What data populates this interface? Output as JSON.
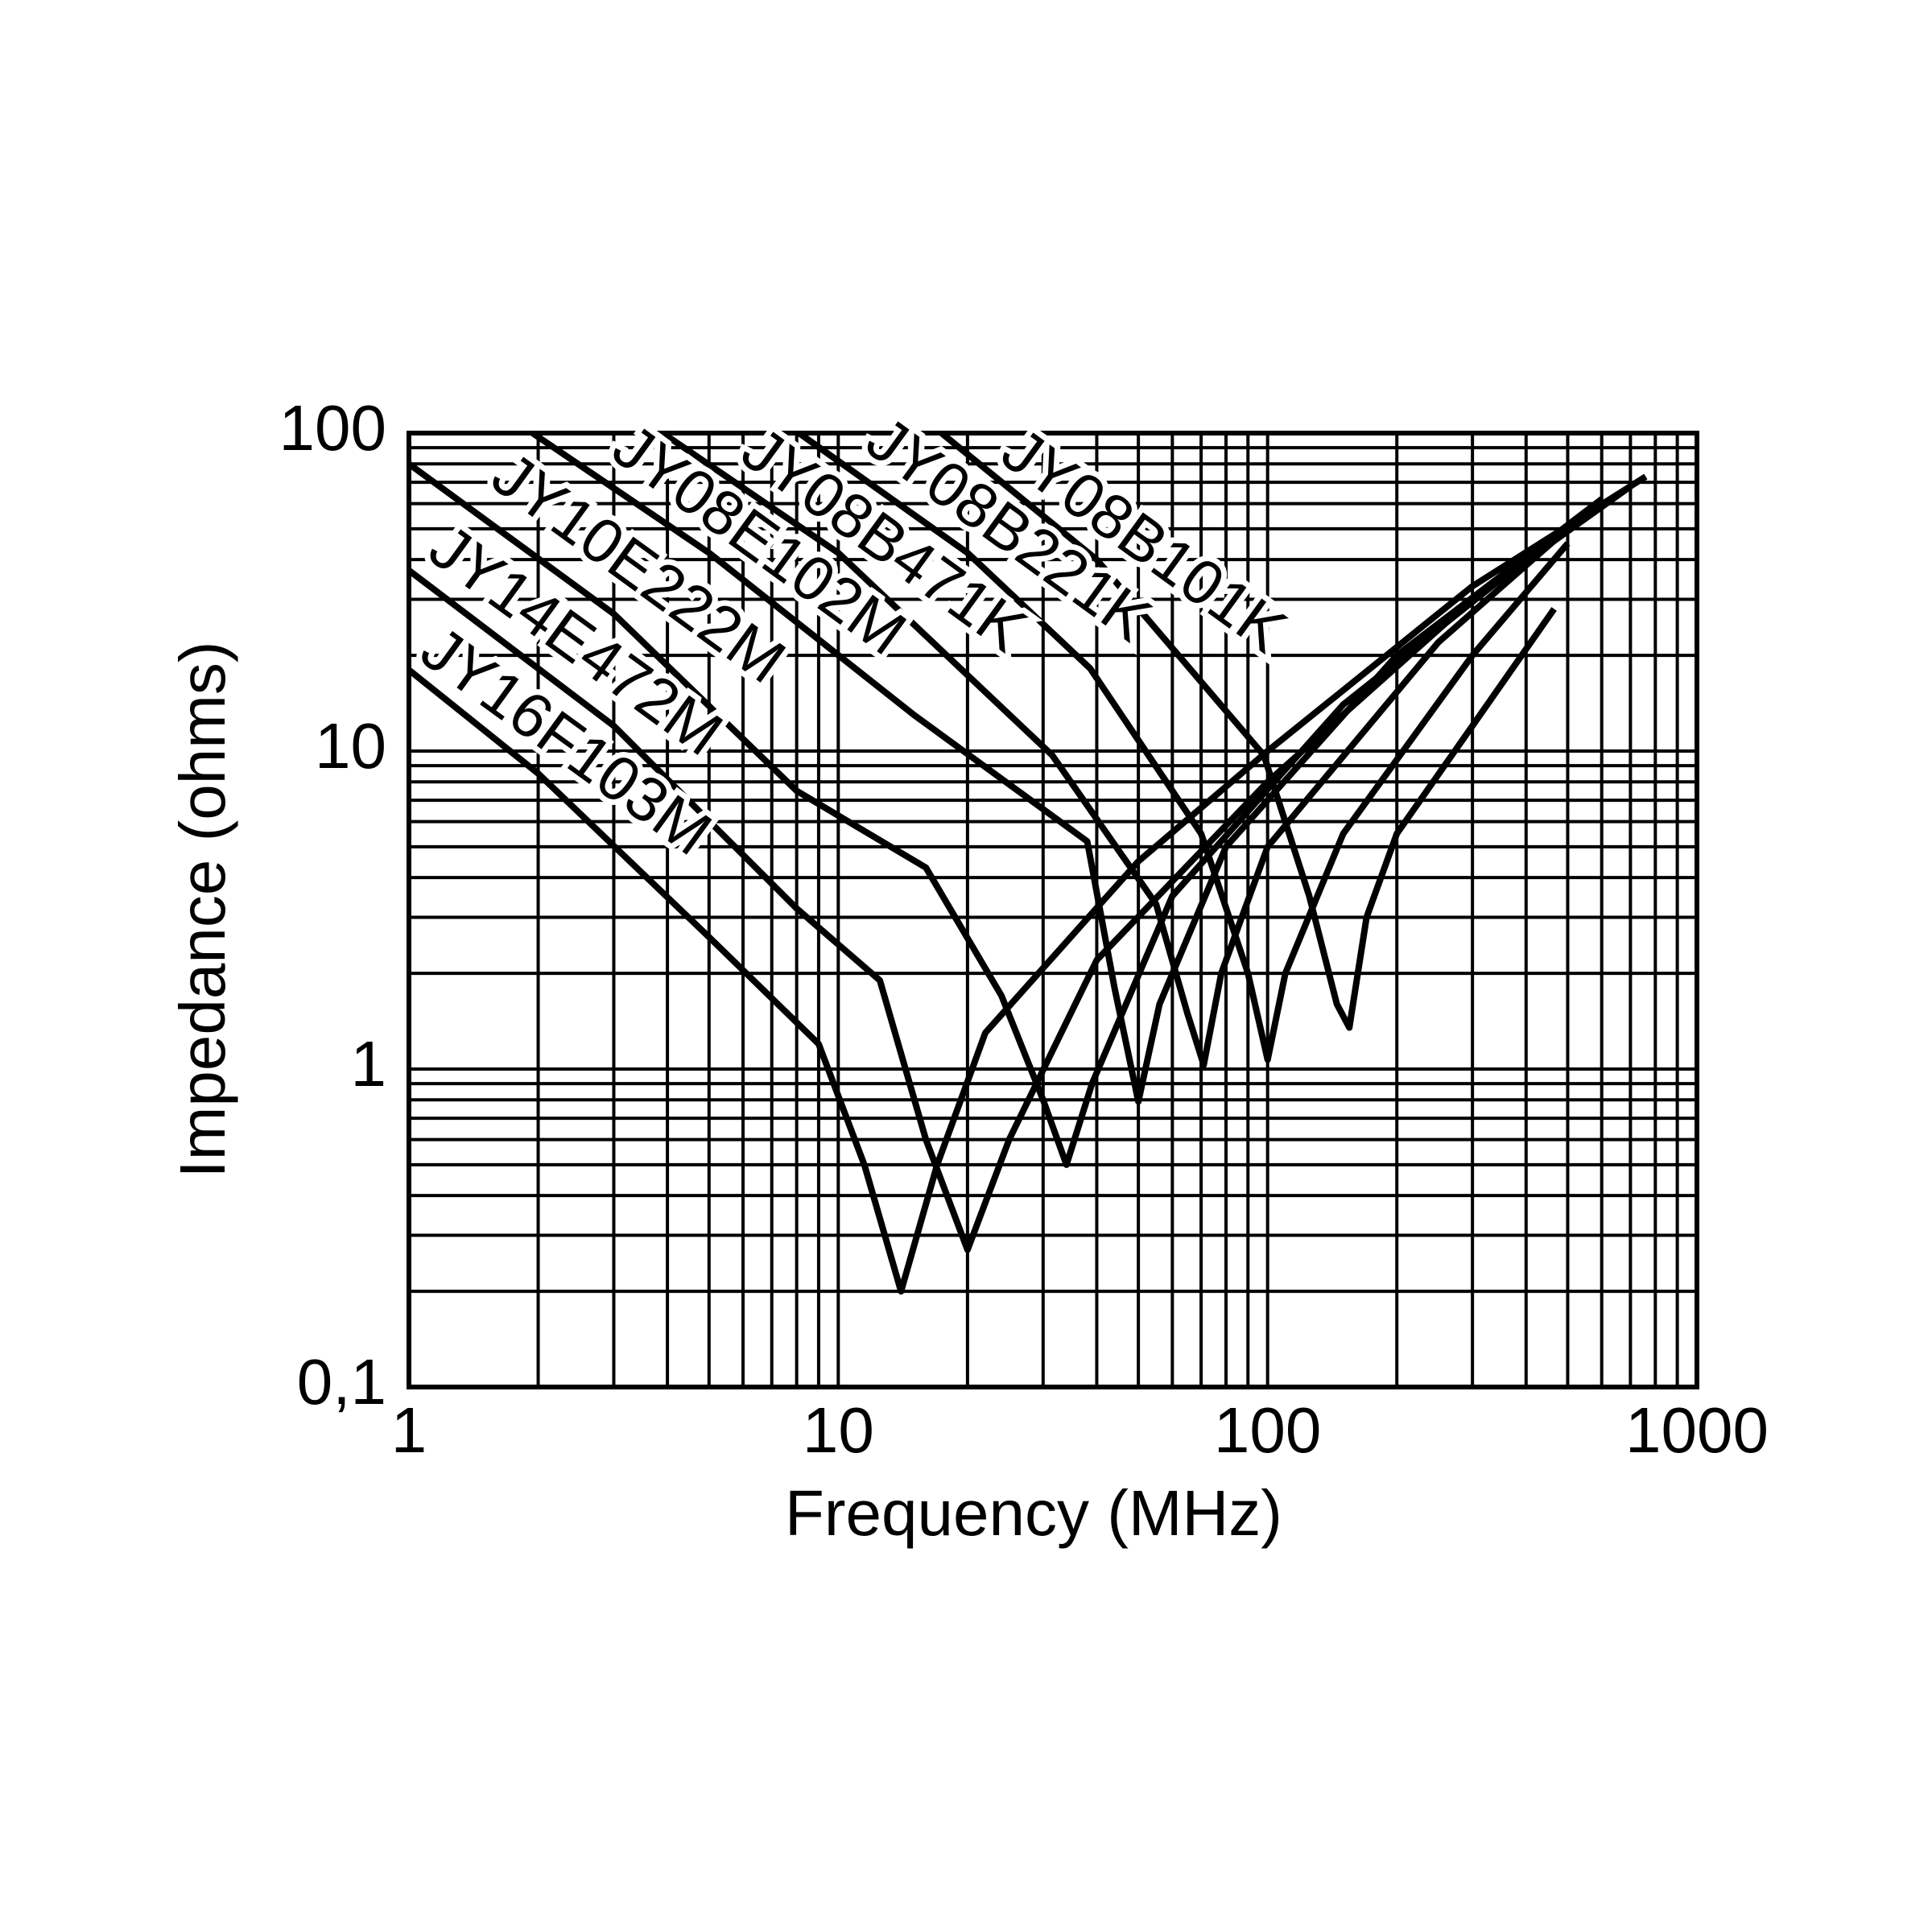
{
  "chart_data": {
    "type": "line",
    "x_label": "Frequency (MHz)",
    "y_label": "Impedance (ohms)",
    "log_x": true,
    "log_y": true,
    "grid": true,
    "xlim": [
      1,
      1000
    ],
    "ylim": [
      0.1,
      100
    ],
    "xticks": [
      1,
      10,
      100,
      1000
    ],
    "yticks": [
      {
        "value": 0.1,
        "label": "0,1"
      },
      1,
      10,
      100
    ],
    "series": [
      {
        "name": "JY16F103M",
        "color": "#000000",
        "x": [
          1,
          2,
          5,
          9,
          11.5,
          14,
          17,
          22,
          50,
          100,
          300,
          760
        ],
        "values": [
          18,
          8.5,
          2.6,
          1.2,
          0.5,
          0.2,
          0.5,
          1.3,
          4.5,
          10,
          33,
          73
        ]
      },
      {
        "name": "JY14E472M",
        "color": "#000000",
        "x": [
          1,
          3,
          8,
          12.5,
          16,
          20,
          25,
          40,
          100,
          300,
          700
        ],
        "values": [
          37,
          12,
          3.2,
          1.9,
          0.6,
          0.27,
          0.6,
          2.2,
          8,
          30,
          68
        ]
      },
      {
        "name": "JY10E222M",
        "color": "#000000",
        "x": [
          1,
          3,
          8,
          16,
          24,
          30,
          34,
          39,
          60,
          150,
          600
        ],
        "values": [
          80,
          27,
          7.5,
          4.3,
          1.7,
          0.8,
          0.5,
          0.9,
          3.5,
          14,
          62
        ]
      },
      {
        "name": "JY08E102M",
        "color": "#000000",
        "x": [
          1.94,
          5,
          15,
          38,
          44,
          50,
          56,
          80,
          200,
          600
        ],
        "values": [
          100,
          42,
          13,
          5.2,
          1.8,
          0.79,
          1.6,
          5,
          20,
          62
        ]
      },
      {
        "name": "JY08B471K",
        "color": "#000000",
        "x": [
          3.9,
          10,
          31.5,
          55,
          65,
          71,
          78,
          100,
          250,
          600
        ],
        "values": [
          100,
          42,
          9.7,
          3.3,
          1.5,
          1.03,
          2,
          5,
          22,
          62
        ]
      },
      {
        "name": "JY08B221K",
        "color": "#000000",
        "x": [
          8.1,
          20,
          38.6,
          70,
          90,
          100,
          110,
          150,
          300,
          500
        ],
        "values": [
          100,
          42,
          18.2,
          5.5,
          2,
          1.07,
          2,
          5.5,
          20,
          45
        ]
      },
      {
        "name": "JY08B101K",
        "color": "#000000",
        "x": [
          17.4,
          40,
          98,
          125,
          145,
          155,
          170,
          200,
          300,
          465
        ],
        "values": [
          100,
          40,
          9.7,
          3.5,
          1.6,
          1.35,
          3,
          5.5,
          12,
          28
        ]
      }
    ]
  }
}
